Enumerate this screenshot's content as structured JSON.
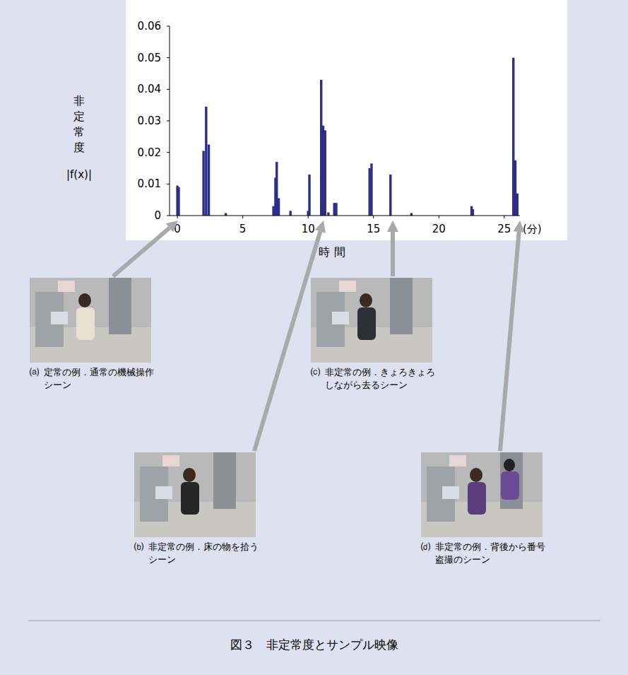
{
  "chart_data": {
    "type": "bar",
    "xlabel": "時 間",
    "xunit": "(分)",
    "ylabel": "非定常度",
    "ylabel2": "|f(x)|",
    "x": [
      0.0,
      0.1,
      2.0,
      2.2,
      2.4,
      3.7,
      7.35,
      7.5,
      7.6,
      7.75,
      8.65,
      10.0,
      10.1,
      11.0,
      11.15,
      11.3,
      11.55,
      12.0,
      12.15,
      14.7,
      14.85,
      16.3,
      17.9,
      22.5,
      22.6,
      25.7,
      25.85,
      26.0
    ],
    "values": [
      0.0095,
      0.009,
      0.0205,
      0.0345,
      0.0225,
      0.0008,
      0.003,
      0.012,
      0.017,
      0.0055,
      0.0015,
      0.0015,
      0.013,
      0.043,
      0.0285,
      0.027,
      0.001,
      0.004,
      0.004,
      0.015,
      0.0165,
      0.013,
      0.0008,
      0.003,
      0.002,
      0.05,
      0.0175,
      0.007
    ],
    "color": "#2b2e8c",
    "xlim": [
      -0.6,
      26.2
    ],
    "xticks": [
      0,
      5,
      10,
      15,
      20,
      25
    ],
    "ylim": [
      0,
      0.06
    ],
    "yticks": [
      0,
      0.01,
      0.02,
      0.03,
      0.04,
      0.05,
      0.06
    ],
    "grid": false
  },
  "figure": {
    "caption": "図３　非定常度とサンプル映像",
    "panels": [
      {
        "label": "⒜",
        "text": "定常の例．通常の機械操作シーン"
      },
      {
        "label": "⒝",
        "text": "非定常の例．床の物を拾うシーン"
      },
      {
        "label": "⒞",
        "text": "非定常の例．きょろきょろしながら去るシーン"
      },
      {
        "label": "⒟",
        "text": "非定常の例．背後から番号盗撮のシーン"
      }
    ]
  }
}
